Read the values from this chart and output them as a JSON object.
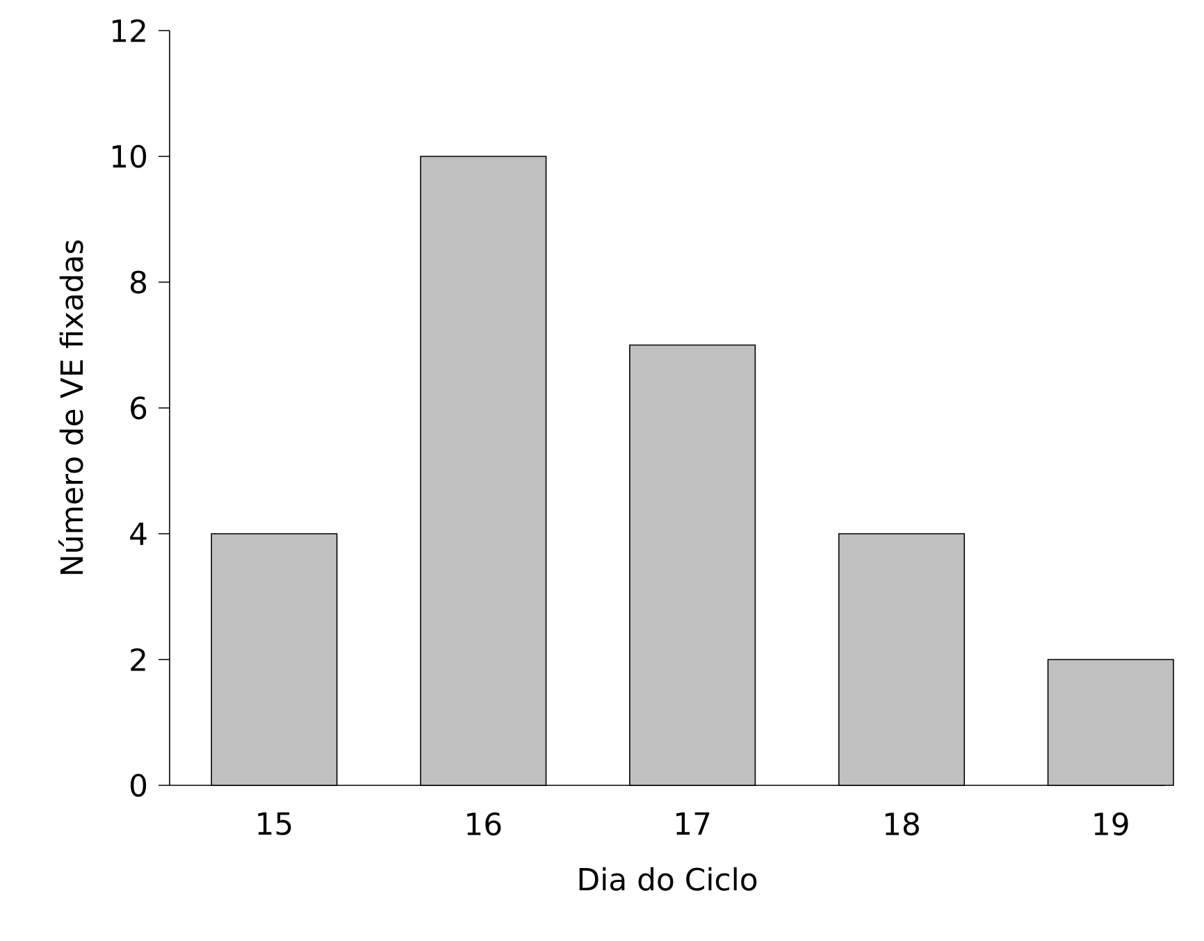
{
  "chart_data": {
    "type": "bar",
    "xlabel": "Dia do Ciclo",
    "ylabel": "Número de VE fixadas",
    "categories": [
      "15",
      "16",
      "17",
      "18",
      "19"
    ],
    "values": [
      4,
      10,
      7,
      4,
      2
    ],
    "color": "#c0c0c0",
    "ylim": [
      0,
      12
    ],
    "yticks": [
      0,
      2,
      4,
      6,
      8,
      10,
      12
    ],
    "grid": false
  }
}
